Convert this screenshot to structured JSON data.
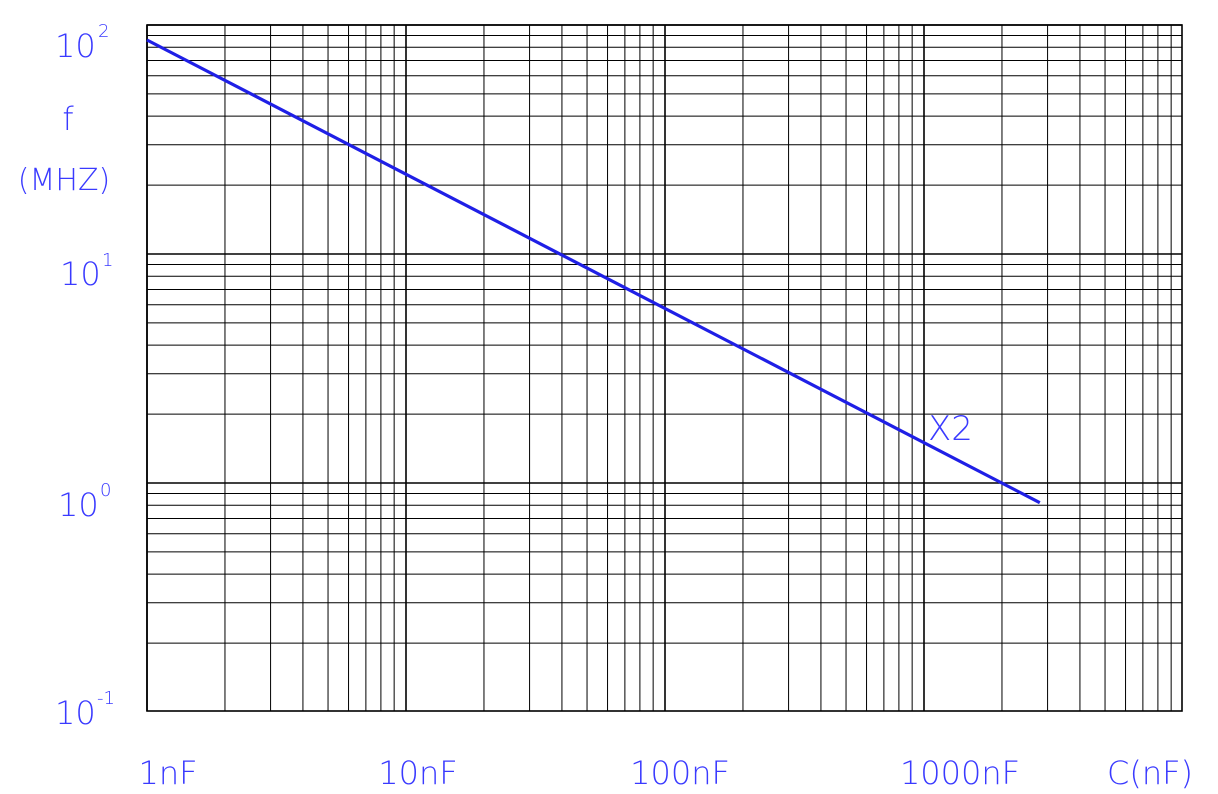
{
  "chart_data": {
    "type": "line",
    "x_scale": "log",
    "y_scale": "log",
    "xlim": [
      1,
      4000
    ],
    "ylim": [
      0.1,
      100
    ],
    "grid": true,
    "x_ticks": [
      {
        "value": 1,
        "label": "1nF"
      },
      {
        "value": 10,
        "label": "10nF"
      },
      {
        "value": 100,
        "label": "100nF"
      },
      {
        "value": 1000,
        "label": "1000nF"
      }
    ],
    "x_unit_label": "C(nF)",
    "y_ticks": [
      {
        "value": 100,
        "base": "10",
        "exp": "2"
      },
      {
        "value": 10,
        "base": "10",
        "exp": "1"
      },
      {
        "value": 1,
        "base": "10",
        "exp": "0"
      },
      {
        "value": 0.1,
        "base": "10",
        "exp": "-1"
      }
    ],
    "ylabel_line1": "f",
    "ylabel_line2": "(MHZ)",
    "series": [
      {
        "name": "X2",
        "x": [
          1,
          2800
        ],
        "y": [
          86,
          0.82
        ]
      }
    ],
    "colors": {
      "series": "#1f1fe6",
      "labels": "#3a3aff",
      "grid": "#000000"
    }
  }
}
